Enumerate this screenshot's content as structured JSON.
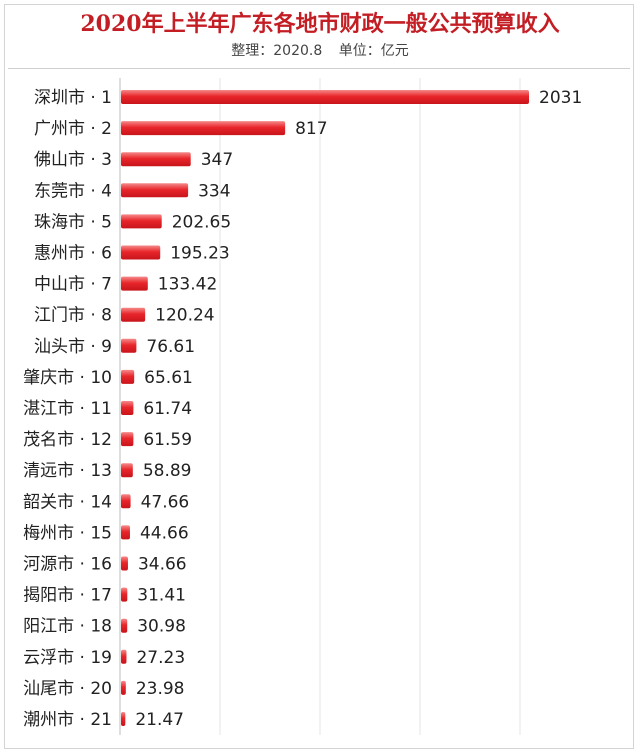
{
  "header": {
    "title": "2020年上半年广东各地市财政一般公共预算收入",
    "source": "整理：2020.8",
    "unit": "单位：亿元"
  },
  "colors": {
    "bar_light": "#f58a8a",
    "bar_mid": "#e8262b",
    "bar_dark": "#c8141b",
    "title": "#c41e25",
    "grid": "#e6e6e6"
  },
  "chart_data": {
    "type": "bar",
    "orientation": "horizontal",
    "categories": [
      "深圳市 · 1",
      "广州市 · 2",
      "佛山市 · 3",
      "东莞市 · 4",
      "珠海市 · 5",
      "惠州市 · 6",
      "中山市 · 7",
      "江门市 · 8",
      "汕头市 · 9",
      "肇庆市 · 10",
      "湛江市 · 11",
      "茂名市 · 12",
      "清远市 · 13",
      "韶关市 · 14",
      "梅州市 · 15",
      "河源市 · 16",
      "揭阳市 · 17",
      "阳江市 · 18",
      "云浮市 · 19",
      "汕尾市 · 20",
      "潮州市 · 21"
    ],
    "values": [
      2031,
      817,
      347,
      334,
      202.65,
      195.23,
      133.42,
      120.24,
      76.61,
      65.61,
      61.74,
      61.59,
      58.89,
      47.66,
      44.66,
      34.66,
      31.41,
      30.98,
      27.23,
      23.98,
      21.47
    ],
    "value_labels": [
      "2031",
      "817",
      "347",
      "334",
      "202.65",
      "195.23",
      "133.42",
      "120.24",
      "76.61",
      "65.61",
      "61.74",
      "61.59",
      "58.89",
      "47.66",
      "44.66",
      "34.66",
      "31.41",
      "30.98",
      "27.23",
      "23.98",
      "21.47"
    ],
    "xlim": [
      0,
      2031
    ],
    "grid": true,
    "legend": "none"
  }
}
